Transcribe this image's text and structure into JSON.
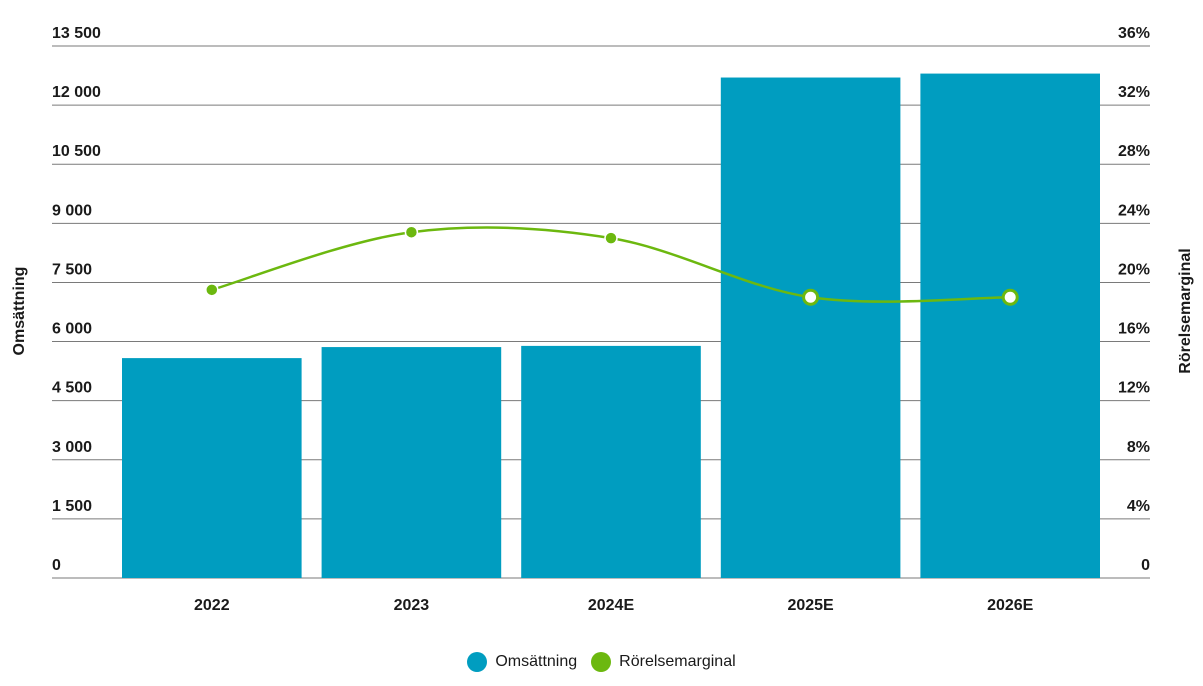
{
  "chart_data": {
    "type": "bar",
    "categories": [
      "2022",
      "2023",
      "2024E",
      "2025E",
      "2026E"
    ],
    "y_left": {
      "label": "Omsättning",
      "ylim": [
        0,
        13500
      ],
      "ticks": [
        0,
        1500,
        3000,
        4500,
        6000,
        7500,
        9000,
        10500,
        12000,
        13500
      ],
      "tick_labels": [
        "0",
        "1 500",
        "3 000",
        "4 500",
        "6 000",
        "7 500",
        "9 000",
        "10 500",
        "12 000",
        "13 500"
      ]
    },
    "y_right": {
      "label": "Rörelsemarginal",
      "ylim": [
        0,
        36
      ],
      "ticks": [
        0,
        4,
        8,
        12,
        16,
        20,
        24,
        28,
        32,
        36
      ],
      "tick_labels": [
        "0",
        "4%",
        "8%",
        "12%",
        "16%",
        "20%",
        "24%",
        "28%",
        "32%",
        "36%"
      ]
    },
    "series": [
      {
        "name": "Omsättning",
        "type": "bar",
        "axis": "left",
        "color": "#009dc0",
        "values": [
          5580,
          5860,
          5890,
          12700,
          12800
        ]
      },
      {
        "name": "Rörelsemarginal",
        "type": "line",
        "axis": "right",
        "color": "#6cb80f",
        "values": [
          19.5,
          23.4,
          23.0,
          19.0,
          19.0
        ],
        "marker_style": [
          "filled",
          "filled",
          "filled",
          "hollow",
          "hollow"
        ]
      }
    ],
    "grid": true,
    "legend_position": "bottom-center"
  }
}
